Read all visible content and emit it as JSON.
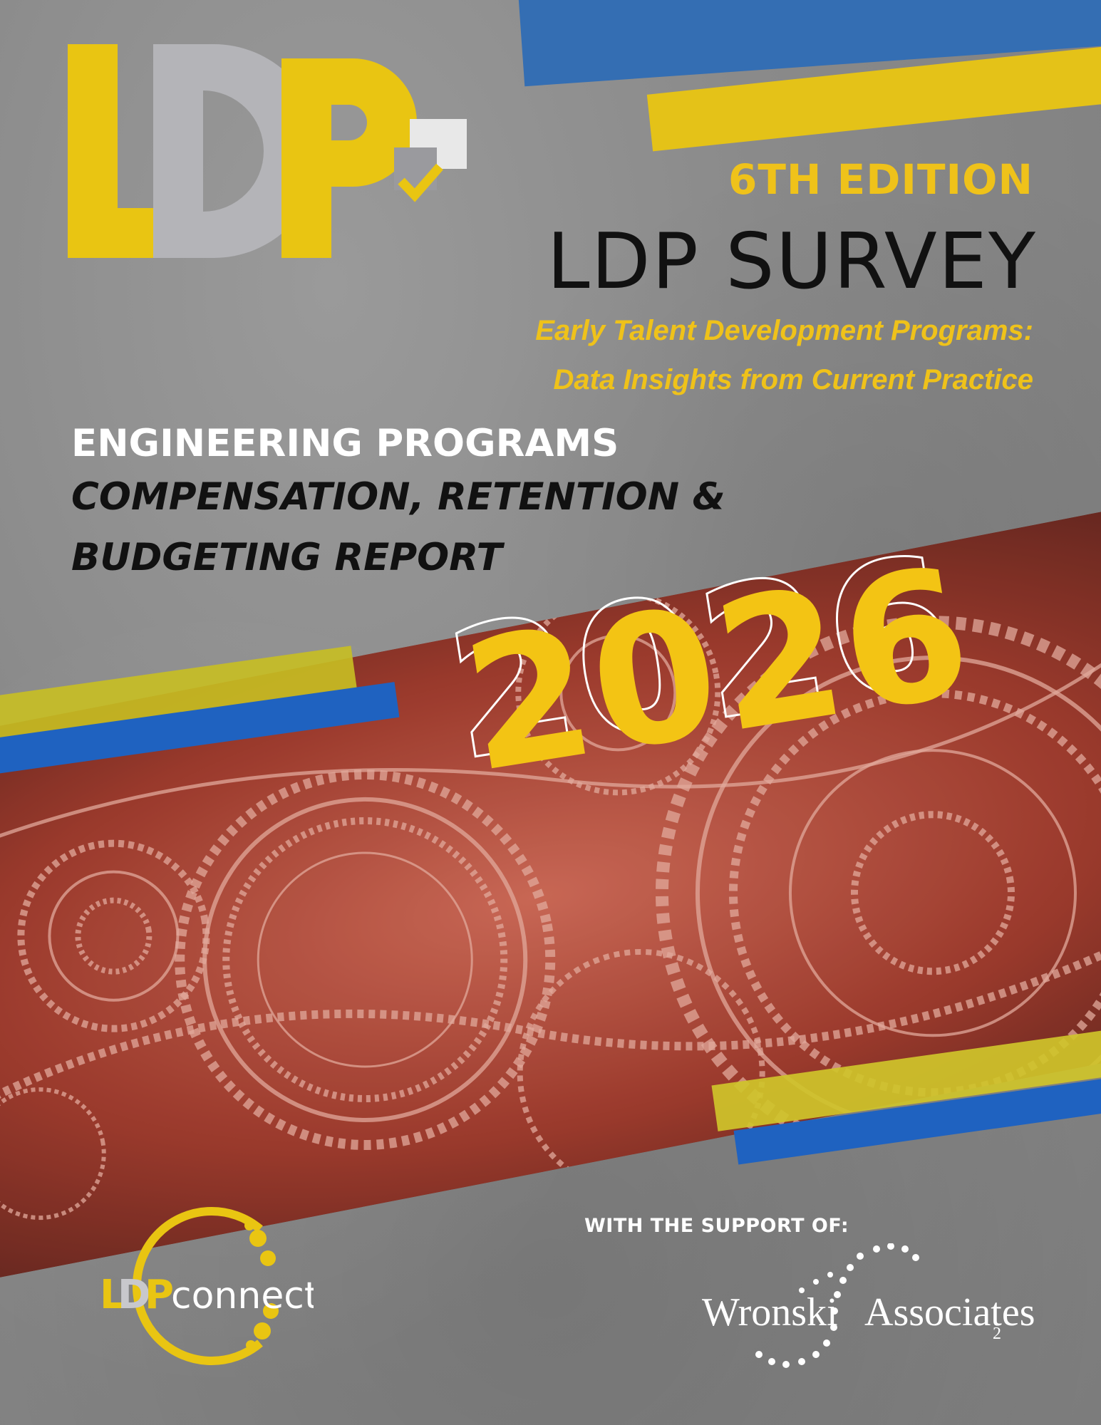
{
  "header": {
    "edition": "6TH EDITION",
    "title": "LDP SURVEY",
    "subtitle_line1": "Early Talent Development Programs:",
    "subtitle_line2": "Data Insights from Current Practice"
  },
  "report": {
    "category": "ENGINEERING PROGRAMS",
    "title_line1": "COMPENSATION, RETENTION &",
    "title_line2": "BUDGETING REPORT",
    "year": "2026"
  },
  "logos": {
    "main_logo": "LDP",
    "connect_logo": "LDPconnect",
    "partner_logo": "Wronski Associates"
  },
  "footer": {
    "support_label": "WITH THE SUPPORT OF:"
  },
  "colors": {
    "yellow": "#efc21a",
    "blue": "#1f62c0",
    "gray_bg": "#8a8a8a",
    "gear_red": "#c8523f"
  }
}
